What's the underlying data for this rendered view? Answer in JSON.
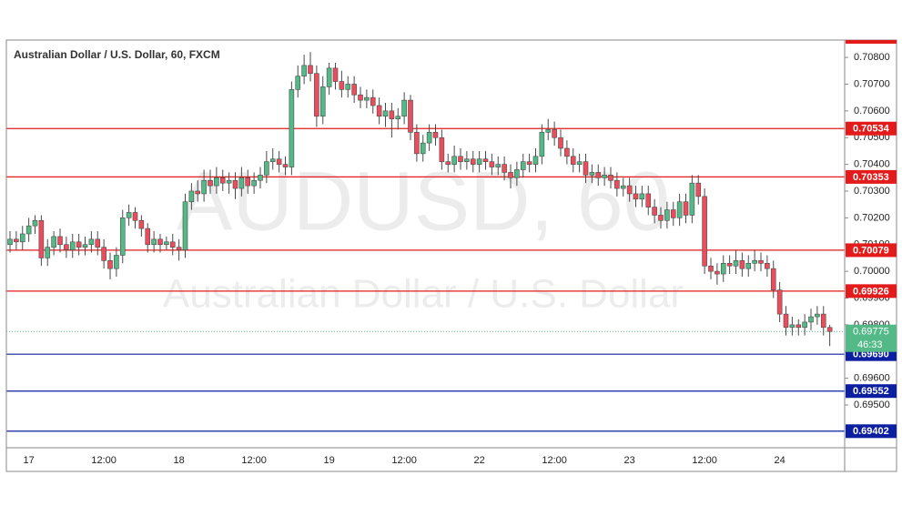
{
  "chart_data": {
    "type": "candlestick",
    "title": "Australian Dollar / U.S. Dollar, 60, FXCM",
    "watermark": {
      "symbol": "AUDUSD, 60",
      "description": "Australian Dollar / U.S. Dollar"
    },
    "up_color": "#53b987",
    "down_color": "#eb4d5c",
    "grid": false,
    "ylim": [
      0.6934,
      0.70865
    ],
    "yticks": [
      {
        "value": 0.708,
        "label": "0.70800"
      },
      {
        "value": 0.707,
        "label": "0.70700"
      },
      {
        "value": 0.706,
        "label": "0.70600"
      },
      {
        "value": 0.705,
        "label": "0.70500"
      },
      {
        "value": 0.704,
        "label": "0.70400"
      },
      {
        "value": 0.703,
        "label": "0.70300"
      },
      {
        "value": 0.702,
        "label": "0.70200"
      },
      {
        "value": 0.701,
        "label": "0.70100"
      },
      {
        "value": 0.7,
        "label": "0.70000"
      },
      {
        "value": 0.699,
        "label": "0.69900"
      },
      {
        "value": 0.698,
        "label": "0.69800"
      },
      {
        "value": 0.697,
        "label": "0.69700"
      },
      {
        "value": 0.696,
        "label": "0.69600"
      },
      {
        "value": 0.695,
        "label": "0.69500"
      }
    ],
    "levels": [
      {
        "value": 0.70534,
        "color": "#e31b1b"
      },
      {
        "value": 0.70353,
        "color": "#e31b1b"
      },
      {
        "value": 0.70079,
        "color": "#e31b1b"
      },
      {
        "value": 0.69926,
        "color": "#e31b1b"
      },
      {
        "value": 0.6969,
        "label": "0.69690",
        "color": "#0b1fa0"
      },
      {
        "value": 0.69552,
        "color": "#0b1fa0"
      },
      {
        "value": 0.69402,
        "color": "#0b1fa0"
      }
    ],
    "last_price": {
      "value": 0.69775,
      "countdown": "46:33",
      "color": "#53b987"
    },
    "categories": [
      null,
      null,
      null,
      "17",
      null,
      null,
      null,
      null,
      null,
      null,
      null,
      null,
      null,
      null,
      null,
      "12:00",
      null,
      null,
      null,
      null,
      null,
      null,
      null,
      null,
      null,
      null,
      null,
      "18",
      null,
      null,
      null,
      null,
      null,
      null,
      null,
      null,
      null,
      null,
      null,
      "12:00",
      null,
      null,
      null,
      null,
      null,
      null,
      null,
      null,
      null,
      null,
      null,
      "19",
      null,
      null,
      null,
      null,
      null,
      null,
      null,
      null,
      null,
      null,
      null,
      "12:00",
      null,
      null,
      null,
      null,
      null,
      null,
      null,
      null,
      null,
      null,
      null,
      "22",
      null,
      null,
      null,
      null,
      null,
      null,
      null,
      null,
      null,
      null,
      null,
      "12:00",
      null,
      null,
      null,
      null,
      null,
      null,
      null,
      null,
      null,
      null,
      null,
      "23",
      null,
      null,
      null,
      null,
      null,
      null,
      null,
      null,
      null,
      null,
      null,
      "12:00",
      null,
      null,
      null,
      null,
      null,
      null,
      null,
      null,
      null,
      null,
      null,
      "24",
      null,
      null,
      null,
      null,
      null,
      null,
      null,
      null
    ],
    "ohlc": [
      [
        0.701,
        0.7015,
        0.7007,
        0.7012
      ],
      [
        0.7012,
        0.7015,
        0.7008,
        0.7011
      ],
      [
        0.7011,
        0.7017,
        0.7008,
        0.7014
      ],
      [
        0.7014,
        0.702,
        0.7011,
        0.7017
      ],
      [
        0.7017,
        0.7021,
        0.7014,
        0.7019
      ],
      [
        0.7019,
        0.7021,
        0.7002,
        0.7005
      ],
      [
        0.7005,
        0.7012,
        0.7002,
        0.7009
      ],
      [
        0.7009,
        0.7015,
        0.7006,
        0.7013
      ],
      [
        0.7013,
        0.7016,
        0.7007,
        0.701
      ],
      [
        0.701,
        0.7013,
        0.7005,
        0.7008
      ],
      [
        0.7008,
        0.7014,
        0.7005,
        0.7011
      ],
      [
        0.7011,
        0.7014,
        0.7006,
        0.7009
      ],
      [
        0.7009,
        0.7013,
        0.7006,
        0.701
      ],
      [
        0.701,
        0.7015,
        0.7007,
        0.7012
      ],
      [
        0.7012,
        0.7015,
        0.7006,
        0.7009
      ],
      [
        0.7009,
        0.7012,
        0.7001,
        0.7004
      ],
      [
        0.7004,
        0.7007,
        0.6997,
        0.7001
      ],
      [
        0.7001,
        0.7009,
        0.6998,
        0.7006
      ],
      [
        0.7006,
        0.7023,
        0.7003,
        0.702
      ],
      [
        0.702,
        0.7025,
        0.7017,
        0.7022
      ],
      [
        0.7022,
        0.7024,
        0.7016,
        0.7019
      ],
      [
        0.7019,
        0.7021,
        0.7013,
        0.7016
      ],
      [
        0.7016,
        0.7018,
        0.7007,
        0.701
      ],
      [
        0.701,
        0.7015,
        0.7007,
        0.7012
      ],
      [
        0.7012,
        0.7014,
        0.7007,
        0.701
      ],
      [
        0.701,
        0.7013,
        0.7008,
        0.7011
      ],
      [
        0.7011,
        0.7014,
        0.7006,
        0.7009
      ],
      [
        0.7009,
        0.7012,
        0.7004,
        0.7008
      ],
      [
        0.7008,
        0.7029,
        0.7005,
        0.7026
      ],
      [
        0.7026,
        0.7033,
        0.7023,
        0.703
      ],
      [
        0.703,
        0.7034,
        0.7026,
        0.7029
      ],
      [
        0.7029,
        0.7038,
        0.7026,
        0.7034
      ],
      [
        0.7034,
        0.7038,
        0.7029,
        0.7032
      ],
      [
        0.7032,
        0.7039,
        0.7029,
        0.7035
      ],
      [
        0.7035,
        0.7038,
        0.703,
        0.7033
      ],
      [
        0.7033,
        0.7037,
        0.7029,
        0.7034
      ],
      [
        0.7034,
        0.7037,
        0.7027,
        0.7031
      ],
      [
        0.7031,
        0.7039,
        0.7028,
        0.7035
      ],
      [
        0.7035,
        0.7038,
        0.7029,
        0.7032
      ],
      [
        0.7032,
        0.7037,
        0.7029,
        0.7034
      ],
      [
        0.7034,
        0.7039,
        0.7031,
        0.7036
      ],
      [
        0.7036,
        0.7045,
        0.7033,
        0.7041
      ],
      [
        0.7041,
        0.7046,
        0.7038,
        0.7042
      ],
      [
        0.7042,
        0.7045,
        0.7037,
        0.704
      ],
      [
        0.704,
        0.7043,
        0.7036,
        0.7039
      ],
      [
        0.7039,
        0.7071,
        0.7036,
        0.7068
      ],
      [
        0.7068,
        0.7077,
        0.7065,
        0.7073
      ],
      [
        0.7073,
        0.7081,
        0.707,
        0.7077
      ],
      [
        0.7077,
        0.7082,
        0.7071,
        0.7074
      ],
      [
        0.7074,
        0.7077,
        0.7054,
        0.7058
      ],
      [
        0.7058,
        0.7073,
        0.7055,
        0.7069
      ],
      [
        0.7069,
        0.7078,
        0.7066,
        0.7076
      ],
      [
        0.7076,
        0.7078,
        0.7068,
        0.7071
      ],
      [
        0.7071,
        0.7075,
        0.7065,
        0.7068
      ],
      [
        0.7068,
        0.7073,
        0.7065,
        0.707
      ],
      [
        0.707,
        0.7073,
        0.7063,
        0.7066
      ],
      [
        0.7066,
        0.7069,
        0.7061,
        0.7064
      ],
      [
        0.7064,
        0.7068,
        0.7061,
        0.7065
      ],
      [
        0.7065,
        0.7068,
        0.7059,
        0.7062
      ],
      [
        0.7062,
        0.7065,
        0.7055,
        0.7058
      ],
      [
        0.7058,
        0.7063,
        0.7054,
        0.706
      ],
      [
        0.706,
        0.7063,
        0.705,
        0.7057
      ],
      [
        0.7057,
        0.7061,
        0.7053,
        0.7058
      ],
      [
        0.7058,
        0.7067,
        0.7055,
        0.7064
      ],
      [
        0.7064,
        0.7066,
        0.7049,
        0.7052
      ],
      [
        0.7052,
        0.7055,
        0.7041,
        0.7044
      ],
      [
        0.7044,
        0.7051,
        0.7041,
        0.7048
      ],
      [
        0.7048,
        0.7055,
        0.7045,
        0.7052
      ],
      [
        0.7052,
        0.7055,
        0.7047,
        0.705
      ],
      [
        0.705,
        0.7053,
        0.7038,
        0.7041
      ],
      [
        0.7041,
        0.7044,
        0.7037,
        0.704
      ],
      [
        0.704,
        0.7047,
        0.7037,
        0.7043
      ],
      [
        0.7043,
        0.7046,
        0.7038,
        0.7041
      ],
      [
        0.7041,
        0.7045,
        0.7038,
        0.7042
      ],
      [
        0.7042,
        0.7045,
        0.7037,
        0.704
      ],
      [
        0.704,
        0.7045,
        0.7037,
        0.7042
      ],
      [
        0.7042,
        0.7045,
        0.7038,
        0.7041
      ],
      [
        0.7041,
        0.7044,
        0.7036,
        0.7039
      ],
      [
        0.7039,
        0.7043,
        0.7036,
        0.704
      ],
      [
        0.704,
        0.7043,
        0.7034,
        0.7037
      ],
      [
        0.7037,
        0.704,
        0.7031,
        0.7035
      ],
      [
        0.7035,
        0.7041,
        0.7032,
        0.7038
      ],
      [
        0.7038,
        0.7044,
        0.7035,
        0.7041
      ],
      [
        0.7041,
        0.7044,
        0.7037,
        0.704
      ],
      [
        0.704,
        0.7046,
        0.7037,
        0.7043
      ],
      [
        0.7043,
        0.7055,
        0.704,
        0.7052
      ],
      [
        0.7052,
        0.7057,
        0.7049,
        0.7053
      ],
      [
        0.7053,
        0.7056,
        0.7047,
        0.705
      ],
      [
        0.705,
        0.7053,
        0.7043,
        0.7046
      ],
      [
        0.7046,
        0.7049,
        0.704,
        0.7043
      ],
      [
        0.7043,
        0.7046,
        0.7037,
        0.704
      ],
      [
        0.704,
        0.7044,
        0.7037,
        0.7041
      ],
      [
        0.7041,
        0.7044,
        0.7033,
        0.7036
      ],
      [
        0.7036,
        0.704,
        0.7033,
        0.7037
      ],
      [
        0.7037,
        0.704,
        0.7032,
        0.7035
      ],
      [
        0.7035,
        0.7039,
        0.7032,
        0.7036
      ],
      [
        0.7036,
        0.7039,
        0.7031,
        0.7034
      ],
      [
        0.7034,
        0.7037,
        0.7028,
        0.7031
      ],
      [
        0.7031,
        0.7035,
        0.7028,
        0.7032
      ],
      [
        0.7032,
        0.7035,
        0.7026,
        0.7029
      ],
      [
        0.7029,
        0.7032,
        0.7024,
        0.7027
      ],
      [
        0.7027,
        0.7032,
        0.7024,
        0.7029
      ],
      [
        0.7029,
        0.7032,
        0.7021,
        0.7024
      ],
      [
        0.7024,
        0.7027,
        0.7018,
        0.7021
      ],
      [
        0.7021,
        0.7024,
        0.7016,
        0.7019
      ],
      [
        0.7019,
        0.7026,
        0.7016,
        0.7023
      ],
      [
        0.7023,
        0.7026,
        0.7017,
        0.702
      ],
      [
        0.702,
        0.7029,
        0.7017,
        0.7026
      ],
      [
        0.7026,
        0.7029,
        0.7018,
        0.7021
      ],
      [
        0.7021,
        0.7036,
        0.7018,
        0.7033
      ],
      [
        0.7033,
        0.7036,
        0.7025,
        0.7028
      ],
      [
        0.7028,
        0.7031,
        0.6999,
        0.7002
      ],
      [
        0.7002,
        0.7005,
        0.6997,
        0.7
      ],
      [
        0.7,
        0.7003,
        0.6995,
        0.6999
      ],
      [
        0.6999,
        0.7006,
        0.6996,
        0.7003
      ],
      [
        0.7003,
        0.7006,
        0.6999,
        0.7002
      ],
      [
        0.7002,
        0.7008,
        0.6999,
        0.7004
      ],
      [
        0.7004,
        0.7007,
        0.6998,
        0.7001
      ],
      [
        0.7001,
        0.7006,
        0.6998,
        0.7003
      ],
      [
        0.7003,
        0.7008,
        0.7,
        0.7004
      ],
      [
        0.7004,
        0.7007,
        0.7,
        0.7003
      ],
      [
        0.7003,
        0.7006,
        0.6998,
        0.7001
      ],
      [
        0.7001,
        0.7004,
        0.699,
        0.6993
      ],
      [
        0.6993,
        0.6996,
        0.6981,
        0.6984
      ],
      [
        0.6984,
        0.6987,
        0.6976,
        0.6979
      ],
      [
        0.6979,
        0.6983,
        0.6976,
        0.698
      ],
      [
        0.698,
        0.6982,
        0.6976,
        0.6979
      ],
      [
        0.6979,
        0.6984,
        0.6976,
        0.6981
      ],
      [
        0.6981,
        0.6986,
        0.6978,
        0.6983
      ],
      [
        0.6983,
        0.6987,
        0.698,
        0.6984
      ],
      [
        0.6984,
        0.6987,
        0.6976,
        0.6979
      ],
      [
        0.6979,
        0.698,
        0.6972,
        0.69775
      ]
    ]
  }
}
